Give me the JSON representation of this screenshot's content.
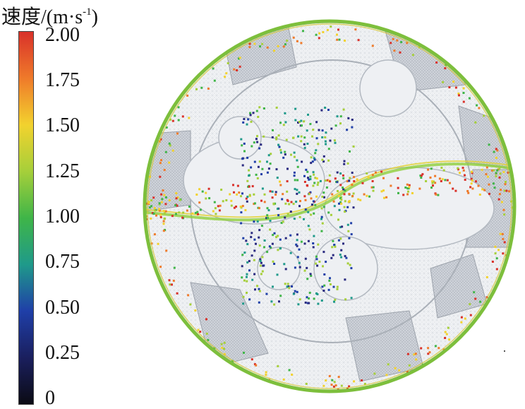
{
  "legend": {
    "title_main": "速度/(m·s",
    "title_sup": "-1",
    "title_close": ")",
    "ticks": [
      "2.00",
      "1.75",
      "1.50",
      "1.25",
      "1.00",
      "0.75",
      "0.50",
      "0.25",
      "0"
    ],
    "colors": [
      "#d9312a",
      "#ef7a2a",
      "#f2d22e",
      "#a6cf3a",
      "#3fb548",
      "#1f9a8a",
      "#1f3fa8",
      "#1a1f5e",
      "#0b0b14"
    ]
  },
  "scene": {
    "particle_velocity_range_mps": [
      0,
      2.0
    ]
  }
}
